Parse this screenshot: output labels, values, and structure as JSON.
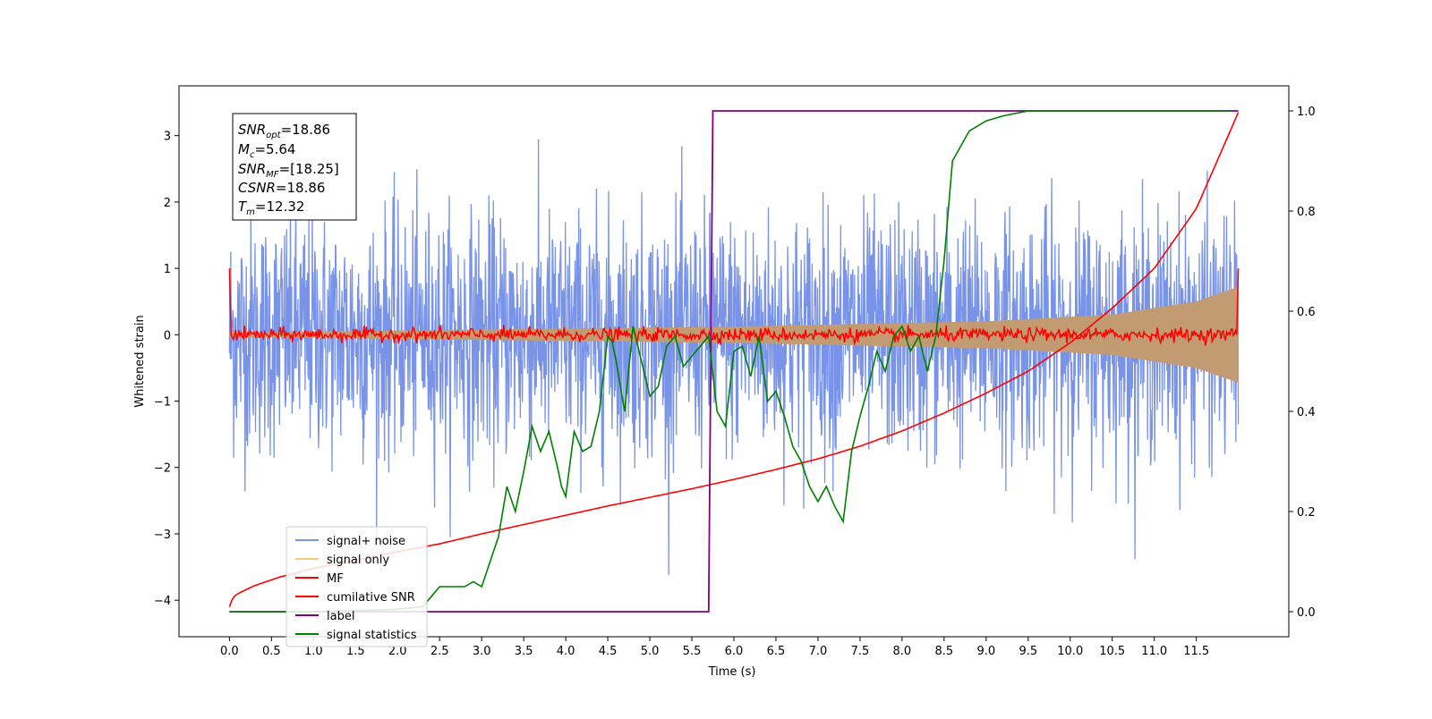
{
  "chart_data": {
    "type": "line",
    "xlabel": "Time (s)",
    "ylabel": "Whitened strain",
    "xlim": [
      -0.6,
      12.6
    ],
    "ylim": [
      -4.55,
      3.75
    ],
    "ylim_right": [
      -0.05,
      1.05
    ],
    "grid": false,
    "legend_placement": "lower-left",
    "x_ticks": [
      "0.0",
      "0.5",
      "1.0",
      "1.5",
      "2.0",
      "2.5",
      "3.0",
      "3.5",
      "4.0",
      "4.5",
      "5.0",
      "5.5",
      "6.0",
      "6.5",
      "7.0",
      "7.5",
      "8.0",
      "8.5",
      "9.0",
      "9.5",
      "10.0",
      "10.5",
      "11.0",
      "11.5"
    ],
    "y_ticks_left": [
      "3",
      "2",
      "1",
      "0",
      "−1",
      "−2",
      "−3",
      "−4"
    ],
    "y_ticks_right": [
      "1.0",
      "0.8",
      "0.6",
      "0.4",
      "0.2",
      "0.0"
    ],
    "annotation": {
      "snr_opt": "=18.86",
      "mc": "=5.64",
      "snr_mf": "=[18.25]",
      "csnr": "=18.86",
      "tm": "=12.32"
    },
    "series": [
      {
        "name": "signal+ noise",
        "color": "#7893e8",
        "axis": "left",
        "noise_std": 0.9,
        "x_range": [
          0,
          12.0
        ]
      },
      {
        "name": "signal only",
        "color": "#c29b72",
        "axis": "left",
        "envelope": {
          "x": [
            0,
            6,
            9,
            10.5,
            11.5,
            12.0
          ],
          "amp": [
            0.03,
            0.12,
            0.2,
            0.3,
            0.5,
            0.72
          ]
        }
      },
      {
        "name": "MF",
        "color": "#ff0000",
        "axis": "left",
        "x": [
          0,
          0.02,
          0.05,
          0.1,
          0.3,
          0.6,
          1,
          1.5,
          2,
          2.5,
          3,
          3.5,
          4,
          4.5,
          5,
          5.5,
          6,
          6.5,
          7,
          7.5,
          8,
          8.5,
          9,
          9.5,
          10,
          10.5,
          11,
          11.5,
          12
        ],
        "y": [
          -4.1,
          -4.02,
          -3.95,
          -3.9,
          -3.78,
          -3.65,
          -3.52,
          -3.4,
          -3.27,
          -3.15,
          -3.0,
          -2.86,
          -2.72,
          -2.58,
          -2.45,
          -2.32,
          -2.18,
          -2.03,
          -1.87,
          -1.68,
          -1.45,
          -1.18,
          -0.88,
          -0.55,
          -0.12,
          0.4,
          1.0,
          1.9,
          3.35
        ]
      },
      {
        "name": "cumilative SNR",
        "color": "#ff0000",
        "axis": "left",
        "start": 1.0,
        "end": 1.0,
        "noise_amp": 0.05
      },
      {
        "name": "label",
        "color": "#800080",
        "axis": "right",
        "x": [
          0,
          5.7,
          5.75,
          12.0
        ],
        "y": [
          0,
          0,
          1,
          1
        ]
      },
      {
        "name": "signal statistics",
        "color": "#008000",
        "axis": "right",
        "x": [
          0,
          0.5,
          1,
          1.5,
          2,
          2.3,
          2.4,
          2.5,
          2.6,
          2.8,
          2.9,
          3.0,
          3.1,
          3.2,
          3.3,
          3.4,
          3.5,
          3.6,
          3.7,
          3.8,
          3.9,
          3.95,
          4.0,
          4.1,
          4.2,
          4.3,
          4.4,
          4.5,
          4.55,
          4.6,
          4.7,
          4.8,
          4.9,
          5.0,
          5.1,
          5.2,
          5.3,
          5.4,
          5.5,
          5.6,
          5.7,
          5.8,
          5.9,
          6.0,
          6.1,
          6.2,
          6.3,
          6.4,
          6.5,
          6.6,
          6.7,
          6.8,
          6.9,
          7.0,
          7.1,
          7.2,
          7.3,
          7.4,
          7.5,
          7.6,
          7.7,
          7.8,
          7.9,
          8.0,
          8.1,
          8.2,
          8.3,
          8.4,
          8.5,
          8.6,
          8.8,
          9.0,
          9.2,
          9.5,
          10,
          10.5,
          11,
          11.5,
          11.9
        ],
        "y": [
          0,
          0,
          0,
          0.002,
          0.005,
          0.01,
          0.03,
          0.05,
          0.05,
          0.05,
          0.06,
          0.05,
          0.1,
          0.15,
          0.25,
          0.2,
          0.28,
          0.37,
          0.32,
          0.36,
          0.29,
          0.25,
          0.23,
          0.36,
          0.32,
          0.33,
          0.4,
          0.55,
          0.54,
          0.5,
          0.4,
          0.57,
          0.5,
          0.43,
          0.45,
          0.53,
          0.55,
          0.49,
          0.51,
          0.53,
          0.55,
          0.4,
          0.37,
          0.52,
          0.53,
          0.47,
          0.55,
          0.42,
          0.44,
          0.39,
          0.33,
          0.3,
          0.25,
          0.22,
          0.25,
          0.21,
          0.18,
          0.32,
          0.39,
          0.45,
          0.52,
          0.48,
          0.55,
          0.57,
          0.52,
          0.55,
          0.48,
          0.55,
          0.7,
          0.9,
          0.96,
          0.98,
          0.99,
          1.0,
          1.0,
          1.0,
          1.0,
          1.0,
          1.0
        ]
      }
    ]
  }
}
